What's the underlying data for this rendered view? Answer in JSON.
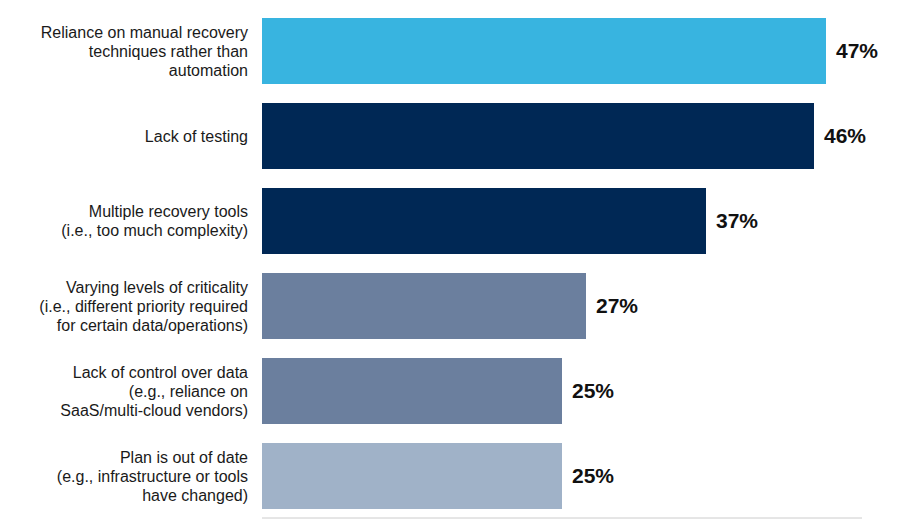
{
  "chart_data": {
    "type": "bar",
    "orientation": "horizontal",
    "categories": [
      "Reliance on manual recovery techniques rather than automation",
      "Lack of testing",
      "Multiple recovery tools (i.e., too much complexity)",
      "Varying levels of criticality (i.e., different priority required for certain data/operations)",
      "Lack of control over data (e.g., reliance on SaaS/multi-cloud vendors)",
      "Plan is out of date (e.g., infrastructure or tools have changed)"
    ],
    "values": [
      47,
      46,
      37,
      27,
      25,
      25
    ],
    "value_labels": [
      "47%",
      "46%",
      "37%",
      "27%",
      "25%",
      "25%"
    ],
    "colors": [
      "#38b4e0",
      "#002855",
      "#002855",
      "#6b7f9e",
      "#6b7f9e",
      "#a0b2c8"
    ],
    "xlim": [
      0,
      50
    ],
    "data_labels": true,
    "tick_labels": "y",
    "grid": false
  }
}
